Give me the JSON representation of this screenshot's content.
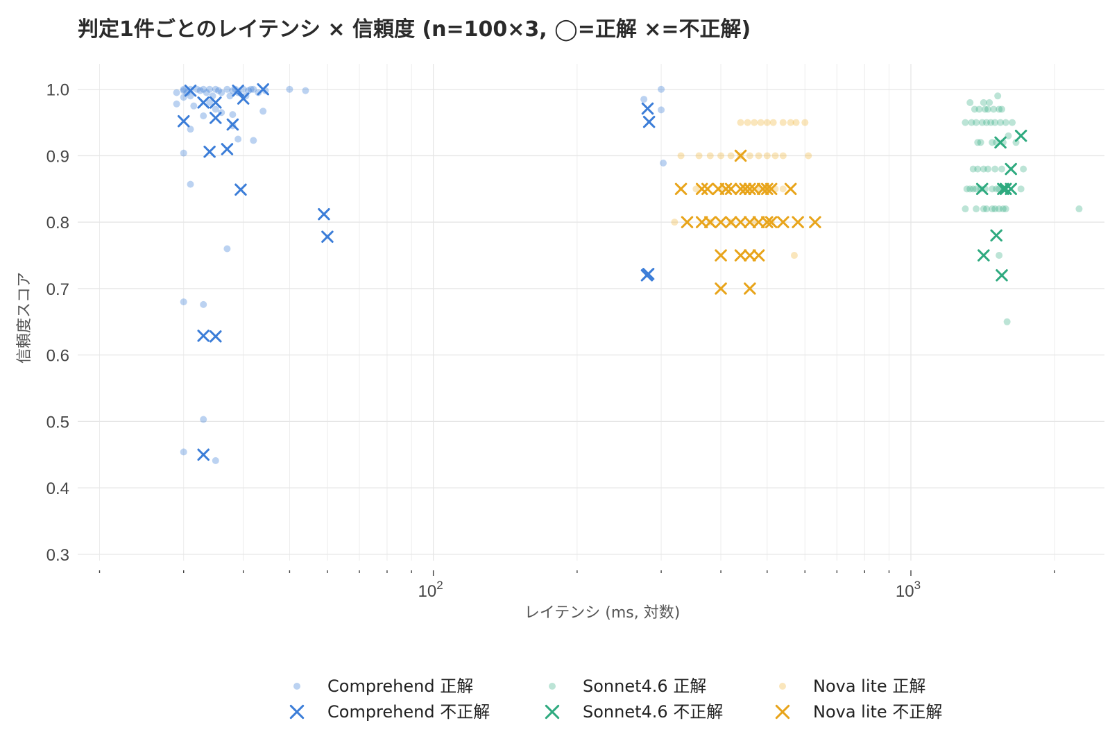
{
  "chart_data": {
    "type": "scatter",
    "title": "判定1件ごとのレイテンシ × 信頼度 (n=100×3, ◯=正解 ×=不正解)",
    "xlabel": "レイテンシ (ms, 対数)",
    "ylabel": "信頼度スコア",
    "x_scale": "log",
    "xlim": [
      18,
      2300
    ],
    "ylim": [
      0.28,
      1.03
    ],
    "x_tick_labels": [
      {
        "value": 100,
        "base": "10",
        "exp": "2"
      },
      {
        "value": 1000,
        "base": "10",
        "exp": "3"
      }
    ],
    "y_ticks": [
      0.3,
      0.4,
      0.5,
      0.6,
      0.7,
      0.8,
      0.9,
      1.0
    ],
    "y_tick_labels": [
      "0.3",
      "0.4",
      "0.5",
      "0.6",
      "0.7",
      "0.8",
      "0.9",
      "1.0"
    ],
    "grid": true,
    "legend_position": "bottom-center",
    "series": [
      {
        "name": "Comprehend 正解",
        "marker": "circle",
        "color": "#3b7dd8",
        "opacity": 0.35,
        "points": [
          [
            29,
            0.995
          ],
          [
            29,
            0.978
          ],
          [
            30,
            1.0
          ],
          [
            30,
            0.998
          ],
          [
            30.5,
            0.995
          ],
          [
            31,
            1.0
          ],
          [
            31,
            0.99
          ],
          [
            32,
            1.0
          ],
          [
            32.5,
            0.998
          ],
          [
            33,
            1.0
          ],
          [
            33.5,
            0.995
          ],
          [
            34,
            1.0
          ],
          [
            34.5,
            0.99
          ],
          [
            35,
            1.0
          ],
          [
            35.5,
            0.998
          ],
          [
            36,
            0.995
          ],
          [
            37,
            1.0
          ],
          [
            37.5,
            0.99
          ],
          [
            38,
            0.998
          ],
          [
            38.5,
            1.0
          ],
          [
            39,
            0.995
          ],
          [
            40,
            1.0
          ],
          [
            40.5,
            0.99
          ],
          [
            41,
            0.998
          ],
          [
            41.5,
            1.0
          ],
          [
            42,
            1.0
          ],
          [
            43,
            0.995
          ],
          [
            44.5,
            0.998
          ],
          [
            30,
            0.988
          ],
          [
            31.5,
            0.975
          ],
          [
            33,
            0.96
          ],
          [
            34,
            0.98
          ],
          [
            35,
            0.97
          ],
          [
            36,
            0.965
          ],
          [
            38,
            0.945
          ],
          [
            38,
            0.962
          ],
          [
            39,
            0.925
          ],
          [
            42,
            0.923
          ],
          [
            44,
            0.967
          ],
          [
            31,
            0.94
          ],
          [
            30,
            0.904
          ],
          [
            31,
            0.857
          ],
          [
            37,
            0.76
          ],
          [
            30,
            0.68
          ],
          [
            33,
            0.676
          ],
          [
            33,
            0.503
          ],
          [
            30,
            0.454
          ],
          [
            35,
            0.441
          ],
          [
            50,
            1.0
          ],
          [
            54,
            0.998
          ],
          [
            276,
            0.985
          ],
          [
            300,
            1.0
          ],
          [
            300,
            0.969
          ],
          [
            303,
            0.889
          ]
        ]
      },
      {
        "name": "Comprehend 不正解",
        "marker": "x",
        "color": "#3b7dd8",
        "opacity": 1,
        "points": [
          [
            30,
            0.952
          ],
          [
            31,
            0.998
          ],
          [
            33,
            0.98
          ],
          [
            35,
            0.98
          ],
          [
            35,
            0.957
          ],
          [
            34,
            0.906
          ],
          [
            37,
            0.91
          ],
          [
            38,
            0.947
          ],
          [
            39,
            0.998
          ],
          [
            40,
            0.986
          ],
          [
            44,
            1.0
          ],
          [
            39.5,
            0.849
          ],
          [
            33,
            0.629
          ],
          [
            35,
            0.628
          ],
          [
            33,
            0.45
          ],
          [
            59,
            0.812
          ],
          [
            60,
            0.778
          ],
          [
            281,
            0.971
          ],
          [
            283,
            0.951
          ],
          [
            280,
            0.72
          ],
          [
            282,
            0.722
          ]
        ]
      },
      {
        "name": "Sonnet4.6 正解",
        "marker": "circle",
        "color": "#2eaa7f",
        "opacity": 0.32,
        "points": [
          [
            1300,
            0.95
          ],
          [
            1330,
            0.98
          ],
          [
            1340,
            0.95
          ],
          [
            1360,
            0.97
          ],
          [
            1370,
            0.95
          ],
          [
            1380,
            0.92
          ],
          [
            1390,
            0.97
          ],
          [
            1400,
            0.92
          ],
          [
            1410,
            0.95
          ],
          [
            1420,
            0.98
          ],
          [
            1430,
            0.97
          ],
          [
            1440,
            0.95
          ],
          [
            1450,
            0.97
          ],
          [
            1460,
            0.98
          ],
          [
            1470,
            0.95
          ],
          [
            1480,
            0.92
          ],
          [
            1490,
            0.97
          ],
          [
            1500,
            0.95
          ],
          [
            1510,
            0.92
          ],
          [
            1520,
            0.99
          ],
          [
            1530,
            0.97
          ],
          [
            1540,
            0.95
          ],
          [
            1550,
            0.97
          ],
          [
            1560,
            0.92
          ],
          [
            1580,
            0.95
          ],
          [
            1600,
            0.93
          ],
          [
            1630,
            0.95
          ],
          [
            1660,
            0.92
          ],
          [
            1350,
            0.88
          ],
          [
            1380,
            0.88
          ],
          [
            1420,
            0.88
          ],
          [
            1450,
            0.88
          ],
          [
            1500,
            0.88
          ],
          [
            1550,
            0.88
          ],
          [
            1720,
            0.88
          ],
          [
            1310,
            0.85
          ],
          [
            1330,
            0.85
          ],
          [
            1350,
            0.85
          ],
          [
            1370,
            0.85
          ],
          [
            1400,
            0.85
          ],
          [
            1430,
            0.85
          ],
          [
            1480,
            0.85
          ],
          [
            1510,
            0.85
          ],
          [
            1530,
            0.85
          ],
          [
            1560,
            0.85
          ],
          [
            1700,
            0.85
          ],
          [
            1300,
            0.82
          ],
          [
            1370,
            0.82
          ],
          [
            1420,
            0.82
          ],
          [
            1440,
            0.82
          ],
          [
            1480,
            0.82
          ],
          [
            1500,
            0.82
          ],
          [
            1530,
            0.82
          ],
          [
            1560,
            0.82
          ],
          [
            1580,
            0.82
          ],
          [
            1530,
            0.75
          ],
          [
            1590,
            0.65
          ],
          [
            2250,
            0.82
          ]
        ]
      },
      {
        "name": "Sonnet4.6 不正解",
        "marker": "x",
        "color": "#2eaa7f",
        "opacity": 1,
        "points": [
          [
            1410,
            0.85
          ],
          [
            1540,
            0.92
          ],
          [
            1560,
            0.85
          ],
          [
            1580,
            0.85
          ],
          [
            1620,
            0.85
          ],
          [
            1620,
            0.88
          ],
          [
            1700,
            0.93
          ],
          [
            1510,
            0.78
          ],
          [
            1420,
            0.75
          ],
          [
            1550,
            0.72
          ]
        ]
      },
      {
        "name": "Nova lite 正解",
        "marker": "circle",
        "color": "#f0b030",
        "opacity": 0.32,
        "points": [
          [
            440,
            0.95
          ],
          [
            455,
            0.95
          ],
          [
            470,
            0.95
          ],
          [
            485,
            0.95
          ],
          [
            500,
            0.95
          ],
          [
            515,
            0.95
          ],
          [
            540,
            0.95
          ],
          [
            560,
            0.95
          ],
          [
            575,
            0.95
          ],
          [
            600,
            0.95
          ],
          [
            330,
            0.9
          ],
          [
            360,
            0.9
          ],
          [
            380,
            0.9
          ],
          [
            400,
            0.9
          ],
          [
            420,
            0.9
          ],
          [
            440,
            0.9
          ],
          [
            460,
            0.9
          ],
          [
            480,
            0.9
          ],
          [
            500,
            0.9
          ],
          [
            520,
            0.9
          ],
          [
            540,
            0.9
          ],
          [
            610,
            0.9
          ],
          [
            355,
            0.85
          ],
          [
            400,
            0.85
          ],
          [
            450,
            0.85
          ],
          [
            480,
            0.85
          ],
          [
            500,
            0.85
          ],
          [
            520,
            0.85
          ],
          [
            540,
            0.85
          ],
          [
            320,
            0.8
          ],
          [
            380,
            0.8
          ],
          [
            420,
            0.8
          ],
          [
            470,
            0.8
          ],
          [
            510,
            0.8
          ],
          [
            570,
            0.75
          ]
        ]
      },
      {
        "name": "Nova lite 不正解",
        "marker": "x",
        "color": "#e8a41a",
        "opacity": 1,
        "points": [
          [
            330,
            0.85
          ],
          [
            365,
            0.85
          ],
          [
            375,
            0.85
          ],
          [
            395,
            0.85
          ],
          [
            410,
            0.85
          ],
          [
            420,
            0.85
          ],
          [
            440,
            0.85
          ],
          [
            450,
            0.85
          ],
          [
            460,
            0.85
          ],
          [
            470,
            0.85
          ],
          [
            490,
            0.85
          ],
          [
            500,
            0.85
          ],
          [
            510,
            0.85
          ],
          [
            560,
            0.85
          ],
          [
            340,
            0.8
          ],
          [
            365,
            0.8
          ],
          [
            380,
            0.8
          ],
          [
            400,
            0.8
          ],
          [
            420,
            0.8
          ],
          [
            440,
            0.8
          ],
          [
            460,
            0.8
          ],
          [
            480,
            0.8
          ],
          [
            500,
            0.8
          ],
          [
            510,
            0.8
          ],
          [
            540,
            0.8
          ],
          [
            580,
            0.8
          ],
          [
            630,
            0.8
          ],
          [
            400,
            0.75
          ],
          [
            440,
            0.75
          ],
          [
            460,
            0.75
          ],
          [
            480,
            0.75
          ],
          [
            400,
            0.7
          ],
          [
            460,
            0.7
          ],
          [
            440,
            0.9
          ]
        ]
      }
    ]
  }
}
